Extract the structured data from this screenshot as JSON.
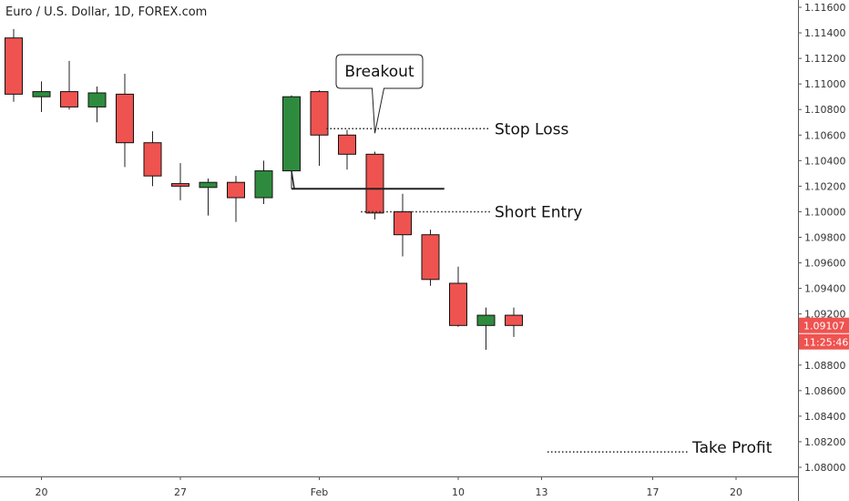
{
  "chart_data": {
    "type": "candlestick",
    "title": "Euro / U.S. Dollar, 1D, FOREX.com",
    "colors": {
      "up": "#2e8b3e",
      "down": "#ef5350",
      "border": "#000000",
      "tag": "#ef5350",
      "grid_line": "#cfcfcf"
    },
    "y_ticks": [
      "1.11600",
      "1.11400",
      "1.11200",
      "1.11000",
      "1.10800",
      "1.10600",
      "1.10400",
      "1.10200",
      "1.10000",
      "1.09800",
      "1.09600",
      "1.09400",
      "1.09200",
      "1.09000",
      "1.08800",
      "1.08600",
      "1.08400",
      "1.08200",
      "1.08000"
    ],
    "x_ticks": [
      {
        "label": "20",
        "index": 1
      },
      {
        "label": "27",
        "index": 6
      },
      {
        "label": "Feb",
        "index": 11
      },
      {
        "label": "10",
        "index": 16
      },
      {
        "label": "13",
        "index": 19
      },
      {
        "label": "17",
        "index": 23
      },
      {
        "label": "20",
        "index": 26
      }
    ],
    "ylim": [
      1.0793,
      1.1172
    ],
    "candles": [
      {
        "o": 1.1136,
        "h": 1.1143,
        "l": 1.1086,
        "c": 1.1092
      },
      {
        "o": 1.109,
        "h": 1.1102,
        "l": 1.1078,
        "c": 1.1094
      },
      {
        "o": 1.1094,
        "h": 1.1118,
        "l": 1.108,
        "c": 1.1082
      },
      {
        "o": 1.1082,
        "h": 1.1098,
        "l": 1.107,
        "c": 1.1093
      },
      {
        "o": 1.1092,
        "h": 1.1108,
        "l": 1.1035,
        "c": 1.1054
      },
      {
        "o": 1.1054,
        "h": 1.1063,
        "l": 1.102,
        "c": 1.1028
      },
      {
        "o": 1.1022,
        "h": 1.1038,
        "l": 1.1009,
        "c": 1.102
      },
      {
        "o": 1.1019,
        "h": 1.1026,
        "l": 1.0997,
        "c": 1.1023
      },
      {
        "o": 1.1023,
        "h": 1.1028,
        "l": 1.0992,
        "c": 1.1011
      },
      {
        "o": 1.1011,
        "h": 1.104,
        "l": 1.1006,
        "c": 1.1032
      },
      {
        "o": 1.1032,
        "h": 1.1091,
        "l": 1.1018,
        "c": 1.109
      },
      {
        "o": 1.1094,
        "h": 1.1095,
        "l": 1.1036,
        "c": 1.106
      },
      {
        "o": 1.106,
        "h": 1.1064,
        "l": 1.1033,
        "c": 1.1045
      },
      {
        "o": 1.1045,
        "h": 1.1047,
        "l": 1.0994,
        "c": 1.0999
      },
      {
        "o": 1.1,
        "h": 1.1014,
        "l": 1.0965,
        "c": 1.0982
      },
      {
        "o": 1.0982,
        "h": 1.0986,
        "l": 1.0942,
        "c": 1.0947
      },
      {
        "o": 1.0944,
        "h": 1.0957,
        "l": 1.091,
        "c": 1.0911
      },
      {
        "o": 1.0911,
        "h": 1.0925,
        "l": 1.0892,
        "c": 1.0919
      },
      {
        "o": 1.0919,
        "h": 1.0925,
        "l": 1.0902,
        "c": 1.0911
      }
    ],
    "current_price": "1.09107",
    "current_price_value": 1.09107,
    "countdown": "11:25:46",
    "annotations": {
      "breakout_label": "Breakout",
      "stop_loss_label": "Stop Loss",
      "stop_loss_price": 1.1065,
      "short_entry_label": "Short Entry",
      "short_entry_price": 1.1,
      "take_profit_label": "Take Profit",
      "take_profit_price": 1.0812,
      "support_price": 1.1018
    }
  }
}
